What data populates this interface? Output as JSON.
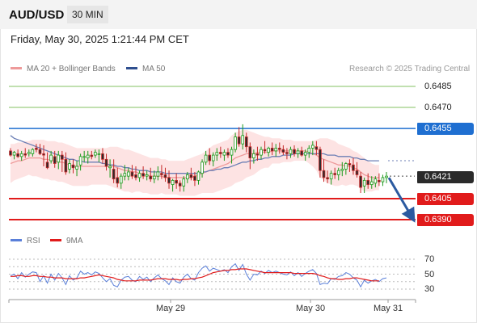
{
  "header": {
    "symbol": "AUD/USD",
    "timeframe": "30 MIN",
    "datetime": "Friday, May 30, 2025 1:21:44 PM CET"
  },
  "legend": {
    "ma20_label": "MA 20 + Bollinger Bands",
    "ma50_label": "MA 50",
    "research": "Research © 2025 Trading Central",
    "rsi_label": "RSI",
    "rsi_ma_label": "9MA"
  },
  "colors": {
    "bullish": "#1a9a1a",
    "bearish": "#c62828",
    "candle_body": "#2a2a2a",
    "bollinger_band": "#fde0e0",
    "ma20": "#ee9a9a",
    "ma50": "#6c7fb5",
    "pivot": "#1f6fd1",
    "current_price": "#2a2a2a",
    "rsi_line": "#5a7fd9",
    "rsi_ma_line": "#e11b1b"
  },
  "price_levels": [
    {
      "price": "0.6485",
      "type": "resistance-target",
      "color": "#5aad2e"
    },
    {
      "price": "0.6470",
      "type": "resistance-target",
      "color": "#5aad2e"
    },
    {
      "price": "0.6455",
      "type": "pivot",
      "color": "#1f6fd1"
    },
    {
      "price": "0.6421",
      "type": "current-price",
      "color": "#2a2a2a"
    },
    {
      "price": "0.6405",
      "type": "support-target",
      "color": "#e11b1b"
    },
    {
      "price": "0.6390",
      "type": "support-target",
      "color": "#e11b1b"
    }
  ],
  "rsi_levels": [
    "70",
    "50",
    "30"
  ],
  "x_axis": [
    "May 29",
    "May 30",
    "May 31"
  ],
  "forecast": {
    "direction": "down"
  },
  "chart_data": {
    "type": "candlestick",
    "title": "AUD/USD",
    "interval": "30 MIN",
    "y_unit": "price",
    "ylim": [
      0.6386,
      0.6491
    ],
    "x_ticks": [
      "May 29",
      "May 30",
      "May 31"
    ],
    "candles": [
      [
        0.6439,
        0.6441,
        0.6435,
        0.6436
      ],
      [
        0.6436,
        0.6439,
        0.6433,
        0.6438
      ],
      [
        0.6437,
        0.644,
        0.6434,
        0.6435
      ],
      [
        0.6435,
        0.6439,
        0.6432,
        0.6437
      ],
      [
        0.6437,
        0.6441,
        0.6434,
        0.6436
      ],
      [
        0.6437,
        0.644,
        0.6435,
        0.6438
      ],
      [
        0.6437,
        0.6441,
        0.6435,
        0.644
      ],
      [
        0.6441,
        0.6444,
        0.6438,
        0.644
      ],
      [
        0.644,
        0.6444,
        0.6436,
        0.6437
      ],
      [
        0.6437,
        0.6443,
        0.6428,
        0.6436
      ],
      [
        0.6431,
        0.6438,
        0.6426,
        0.6427
      ],
      [
        0.6432,
        0.6439,
        0.643,
        0.6436
      ],
      [
        0.6435,
        0.6439,
        0.6427,
        0.643
      ],
      [
        0.6431,
        0.6439,
        0.6426,
        0.6436
      ],
      [
        0.6436,
        0.6439,
        0.6424,
        0.6433
      ],
      [
        0.6433,
        0.6438,
        0.6422,
        0.6424
      ],
      [
        0.6426,
        0.6433,
        0.6423,
        0.643
      ],
      [
        0.6429,
        0.6433,
        0.6423,
        0.6427
      ],
      [
        0.6426,
        0.6432,
        0.6421,
        0.6428
      ],
      [
        0.6429,
        0.6437,
        0.6425,
        0.6435
      ],
      [
        0.6435,
        0.6439,
        0.6431,
        0.6435
      ],
      [
        0.6434,
        0.6439,
        0.643,
        0.6436
      ],
      [
        0.6436,
        0.6439,
        0.6433,
        0.6435
      ],
      [
        0.6436,
        0.644,
        0.6434,
        0.6438
      ],
      [
        0.6437,
        0.644,
        0.6431,
        0.6437
      ],
      [
        0.6437,
        0.6441,
        0.643,
        0.6433
      ],
      [
        0.6433,
        0.6437,
        0.6425,
        0.6428
      ],
      [
        0.6427,
        0.6433,
        0.642,
        0.6428
      ],
      [
        0.6426,
        0.6433,
        0.6416,
        0.6419
      ],
      [
        0.642,
        0.6427,
        0.6413,
        0.6416
      ],
      [
        0.6416,
        0.6423,
        0.6412,
        0.6421
      ],
      [
        0.6421,
        0.6429,
        0.6418,
        0.6423
      ],
      [
        0.6421,
        0.6427,
        0.6418,
        0.6424
      ],
      [
        0.6424,
        0.6429,
        0.6419,
        0.6421
      ],
      [
        0.6422,
        0.6428,
        0.6418,
        0.642
      ],
      [
        0.642,
        0.6425,
        0.6417,
        0.6423
      ],
      [
        0.6423,
        0.6428,
        0.6419,
        0.6421
      ],
      [
        0.6421,
        0.6425,
        0.6418,
        0.6422
      ],
      [
        0.6421,
        0.6427,
        0.6417,
        0.6419
      ],
      [
        0.6419,
        0.6425,
        0.6416,
        0.6421
      ],
      [
        0.6421,
        0.6428,
        0.6418,
        0.6424
      ],
      [
        0.6423,
        0.6429,
        0.6419,
        0.6422
      ],
      [
        0.6422,
        0.6427,
        0.6417,
        0.642
      ],
      [
        0.642,
        0.6425,
        0.6412,
        0.6416
      ],
      [
        0.6415,
        0.6419,
        0.641,
        0.6418
      ],
      [
        0.6418,
        0.6423,
        0.6412,
        0.6416
      ],
      [
        0.6416,
        0.6418,
        0.641,
        0.6414
      ],
      [
        0.6414,
        0.6421,
        0.641,
        0.6419
      ],
      [
        0.6419,
        0.6424,
        0.6416,
        0.6422
      ],
      [
        0.6422,
        0.6427,
        0.6418,
        0.642
      ],
      [
        0.6421,
        0.6424,
        0.6414,
        0.6418
      ],
      [
        0.6418,
        0.6425,
        0.6415,
        0.6424
      ],
      [
        0.6423,
        0.6433,
        0.642,
        0.6431
      ],
      [
        0.6431,
        0.6439,
        0.6429,
        0.6436
      ],
      [
        0.6436,
        0.6441,
        0.6429,
        0.6432
      ],
      [
        0.6432,
        0.6438,
        0.6428,
        0.6436
      ],
      [
        0.6436,
        0.6441,
        0.6432,
        0.6438
      ],
      [
        0.6438,
        0.6442,
        0.6434,
        0.6437
      ],
      [
        0.6436,
        0.644,
        0.6432,
        0.6438
      ],
      [
        0.6438,
        0.6441,
        0.6434,
        0.6436
      ],
      [
        0.6436,
        0.6442,
        0.643,
        0.644
      ],
      [
        0.644,
        0.6452,
        0.6438,
        0.6449
      ],
      [
        0.6449,
        0.6456,
        0.6442,
        0.6444
      ],
      [
        0.6444,
        0.6458,
        0.644,
        0.645
      ],
      [
        0.6449,
        0.6452,
        0.6438,
        0.6442
      ],
      [
        0.6442,
        0.6445,
        0.6426,
        0.6434
      ],
      [
        0.6434,
        0.644,
        0.643,
        0.6437
      ],
      [
        0.6437,
        0.6442,
        0.6432,
        0.6436
      ],
      [
        0.6436,
        0.6442,
        0.6433,
        0.644
      ],
      [
        0.644,
        0.6446,
        0.6437,
        0.6439
      ],
      [
        0.6438,
        0.6442,
        0.6435,
        0.6441
      ],
      [
        0.6441,
        0.6445,
        0.6436,
        0.6439
      ],
      [
        0.6439,
        0.6444,
        0.6435,
        0.6441
      ],
      [
        0.6441,
        0.6445,
        0.6437,
        0.644
      ],
      [
        0.644,
        0.6443,
        0.6436,
        0.6438
      ],
      [
        0.6438,
        0.6441,
        0.6433,
        0.6437
      ],
      [
        0.6437,
        0.6442,
        0.6434,
        0.644
      ],
      [
        0.644,
        0.6443,
        0.6435,
        0.6437
      ],
      [
        0.6437,
        0.6441,
        0.6434,
        0.6439
      ],
      [
        0.6439,
        0.6442,
        0.6435,
        0.6436
      ],
      [
        0.6436,
        0.644,
        0.6432,
        0.6438
      ],
      [
        0.6438,
        0.6443,
        0.6434,
        0.6441
      ],
      [
        0.6441,
        0.6446,
        0.6436,
        0.6443
      ],
      [
        0.6442,
        0.6446,
        0.6436,
        0.644
      ],
      [
        0.644,
        0.6442,
        0.642,
        0.6425
      ],
      [
        0.6425,
        0.6433,
        0.6417,
        0.642
      ],
      [
        0.642,
        0.6425,
        0.6416,
        0.6419
      ],
      [
        0.6419,
        0.6425,
        0.6415,
        0.6423
      ],
      [
        0.6423,
        0.6427,
        0.6419,
        0.6422
      ],
      [
        0.6422,
        0.6427,
        0.6418,
        0.6425
      ],
      [
        0.6425,
        0.6431,
        0.6421,
        0.6426
      ],
      [
        0.6426,
        0.6431,
        0.6422,
        0.643
      ],
      [
        0.643,
        0.6433,
        0.6424,
        0.6429
      ],
      [
        0.6429,
        0.6434,
        0.6422,
        0.6425
      ],
      [
        0.6425,
        0.6431,
        0.642,
        0.6422
      ],
      [
        0.6421,
        0.6424,
        0.6409,
        0.6413
      ],
      [
        0.6414,
        0.642,
        0.6409,
        0.6418
      ],
      [
        0.6418,
        0.6423,
        0.6412,
        0.6415
      ],
      [
        0.6415,
        0.6421,
        0.6412,
        0.6417
      ],
      [
        0.6416,
        0.6421,
        0.6413,
        0.6419
      ],
      [
        0.6418,
        0.6423,
        0.6414,
        0.6417
      ],
      [
        0.6417,
        0.6422,
        0.6414,
        0.642
      ],
      [
        0.642,
        0.6424,
        0.6416,
        0.6421
      ]
    ],
    "ma20": [
      0.643,
      0.6431,
      0.6432,
      0.6432,
      0.6433,
      0.6434,
      0.6434,
      0.6434,
      0.6434,
      0.6433,
      0.6433,
      0.6432,
      0.6432,
      0.6431,
      0.6431,
      0.643,
      0.6429,
      0.6428,
      0.6428,
      0.6428,
      0.6428,
      0.6428,
      0.6428,
      0.6428,
      0.6428,
      0.6428,
      0.6428,
      0.6428,
      0.6428,
      0.6427,
      0.6426,
      0.6425,
      0.6425,
      0.6424,
      0.6424,
      0.6423,
      0.6422,
      0.6422,
      0.6421,
      0.6421,
      0.6421,
      0.6421,
      0.642,
      0.642,
      0.642,
      0.642,
      0.642,
      0.642,
      0.642,
      0.642,
      0.6421,
      0.6422,
      0.6423,
      0.6424,
      0.6425,
      0.6426,
      0.6427,
      0.6428,
      0.6429,
      0.643,
      0.6432,
      0.6434,
      0.6435,
      0.6436,
      0.6437,
      0.6437,
      0.6437,
      0.6438,
      0.6438,
      0.6438,
      0.6438,
      0.6439,
      0.6439,
      0.6439,
      0.6439,
      0.6439,
      0.6439,
      0.6439,
      0.6439,
      0.6439,
      0.6439,
      0.6438,
      0.6437,
      0.6436,
      0.6434,
      0.6433,
      0.6432,
      0.6431,
      0.643,
      0.6429,
      0.6429,
      0.6428,
      0.6428,
      0.6427,
      0.6426,
      0.6424,
      0.6422,
      0.6421,
      0.642,
      0.642,
      0.642
    ],
    "bb_upper": [
      0.6444,
      0.6444,
      0.6445,
      0.6445,
      0.6446,
      0.6446,
      0.6447,
      0.6447,
      0.6447,
      0.6447,
      0.6446,
      0.6446,
      0.6446,
      0.6445,
      0.6445,
      0.6444,
      0.6443,
      0.6442,
      0.6441,
      0.6441,
      0.6441,
      0.6441,
      0.6441,
      0.6441,
      0.6441,
      0.6441,
      0.6441,
      0.6442,
      0.6442,
      0.6442,
      0.6441,
      0.644,
      0.644,
      0.6439,
      0.6438,
      0.6437,
      0.6436,
      0.6435,
      0.6434,
      0.6434,
      0.6434,
      0.6433,
      0.6433,
      0.6432,
      0.6432,
      0.6432,
      0.6432,
      0.6432,
      0.6433,
      0.6434,
      0.6435,
      0.6436,
      0.6437,
      0.6439,
      0.6441,
      0.6443,
      0.6444,
      0.6445,
      0.6446,
      0.6447,
      0.645,
      0.6452,
      0.6453,
      0.6454,
      0.6454,
      0.6453,
      0.6452,
      0.6451,
      0.645,
      0.6449,
      0.6449,
      0.6448,
      0.6448,
      0.6448,
      0.6447,
      0.6447,
      0.6447,
      0.6446,
      0.6446,
      0.6446,
      0.6446,
      0.6446,
      0.6446,
      0.6447,
      0.6448,
      0.6448,
      0.6448,
      0.6447,
      0.6446,
      0.6444,
      0.6443,
      0.6442,
      0.6441,
      0.6439,
      0.6438,
      0.6436,
      0.6434,
      0.6432,
      0.643,
      0.6429,
      0.6429
    ],
    "bb_lower": [
      0.6416,
      0.6418,
      0.6419,
      0.642,
      0.6421,
      0.6422,
      0.6421,
      0.6421,
      0.642,
      0.6419,
      0.6419,
      0.6418,
      0.6418,
      0.6417,
      0.6417,
      0.6416,
      0.6415,
      0.6414,
      0.6414,
      0.6414,
      0.6414,
      0.6414,
      0.6415,
      0.6415,
      0.6415,
      0.6415,
      0.6415,
      0.6414,
      0.6413,
      0.6412,
      0.6411,
      0.641,
      0.641,
      0.6409,
      0.641,
      0.641,
      0.6409,
      0.6409,
      0.6408,
      0.6408,
      0.6408,
      0.6409,
      0.6408,
      0.6408,
      0.6408,
      0.6408,
      0.6407,
      0.6407,
      0.6407,
      0.6407,
      0.6407,
      0.6408,
      0.6409,
      0.6409,
      0.6409,
      0.6409,
      0.641,
      0.6411,
      0.6412,
      0.6413,
      0.6414,
      0.6416,
      0.6417,
      0.6418,
      0.642,
      0.6421,
      0.6422,
      0.6424,
      0.6426,
      0.6427,
      0.6427,
      0.643,
      0.643,
      0.643,
      0.6431,
      0.6431,
      0.6431,
      0.6432,
      0.6432,
      0.6432,
      0.6432,
      0.643,
      0.6428,
      0.6425,
      0.642,
      0.6418,
      0.6416,
      0.6415,
      0.6414,
      0.6414,
      0.6415,
      0.6414,
      0.6415,
      0.6415,
      0.6414,
      0.6412,
      0.641,
      0.641,
      0.641,
      0.6411,
      0.6411
    ],
    "ma50": [
      0.645,
      0.6448,
      0.6447,
      0.6446,
      0.6445,
      0.6444,
      0.6443,
      0.6442,
      0.6441,
      0.644,
      0.6439,
      0.6438,
      0.6437,
      0.6436,
      0.6435,
      0.6434,
      0.6433,
      0.6433,
      0.6432,
      0.6432,
      0.6431,
      0.6431,
      0.6431,
      0.6431,
      0.6431,
      0.643,
      0.643,
      0.6429,
      0.6429,
      0.6428,
      0.6428,
      0.6427,
      0.6427,
      0.6426,
      0.6426,
      0.6425,
      0.6425,
      0.6425,
      0.6424,
      0.6424,
      0.6424,
      0.6424,
      0.6423,
      0.6423,
      0.6423,
      0.6423,
      0.6423,
      0.6423,
      0.6423,
      0.6423,
      0.6423,
      0.6423,
      0.6424,
      0.6424,
      0.6425,
      0.6425,
      0.6426,
      0.6426,
      0.6427,
      0.6427,
      0.6428,
      0.6429,
      0.643,
      0.6431,
      0.6431,
      0.6432,
      0.6432,
      0.6433,
      0.6433,
      0.6434,
      0.6434,
      0.6435,
      0.6435,
      0.6435,
      0.6436,
      0.6436,
      0.6436,
      0.6437,
      0.6437,
      0.6437,
      0.6437,
      0.6437,
      0.6437,
      0.6437,
      0.6437,
      0.6437,
      0.6436,
      0.6436,
      0.6436,
      0.6435,
      0.6435,
      0.6435,
      0.6435,
      0.6434,
      0.6434,
      0.6433,
      0.6433,
      0.6432,
      0.6432,
      0.6432,
      0.6432
    ],
    "rsi": [
      48,
      50,
      44,
      52,
      46,
      50,
      53,
      52,
      40,
      48,
      38,
      50,
      42,
      51,
      45,
      36,
      48,
      42,
      45,
      54,
      50,
      52,
      49,
      53,
      51,
      45,
      40,
      44,
      35,
      33,
      42,
      46,
      47,
      42,
      40,
      47,
      43,
      46,
      40,
      45,
      49,
      44,
      41,
      36,
      45,
      40,
      38,
      46,
      50,
      44,
      42,
      52,
      58,
      61,
      54,
      58,
      56,
      54,
      56,
      52,
      60,
      64,
      55,
      63,
      50,
      42,
      50,
      49,
      54,
      51,
      55,
      52,
      54,
      52,
      50,
      49,
      53,
      48,
      52,
      47,
      51,
      54,
      56,
      51,
      36,
      38,
      37,
      44,
      43,
      47,
      48,
      52,
      50,
      45,
      42,
      33,
      42,
      38,
      41,
      43,
      40,
      44,
      45
    ],
    "rsi_ma": [
      47,
      47,
      48,
      48,
      47,
      47,
      48,
      48,
      47,
      47,
      46,
      46,
      45,
      45,
      45,
      44,
      44,
      44,
      44,
      45,
      45,
      46,
      47,
      48,
      49,
      48,
      47,
      46,
      45,
      43,
      42,
      41,
      41,
      41,
      41,
      42,
      42,
      42,
      42,
      43,
      44,
      44,
      44,
      43,
      43,
      43,
      42,
      43,
      43,
      44,
      44,
      45,
      46,
      48,
      50,
      52,
      53,
      54,
      55,
      55,
      56,
      56,
      57,
      57,
      57,
      56,
      55,
      54,
      53,
      52,
      52,
      52,
      52,
      52,
      52,
      52,
      52,
      51,
      51,
      51,
      51,
      51,
      51,
      50,
      48,
      47,
      45,
      44,
      44,
      43,
      43,
      44,
      44,
      45,
      45,
      44,
      43,
      42,
      41,
      41,
      41
    ]
  }
}
